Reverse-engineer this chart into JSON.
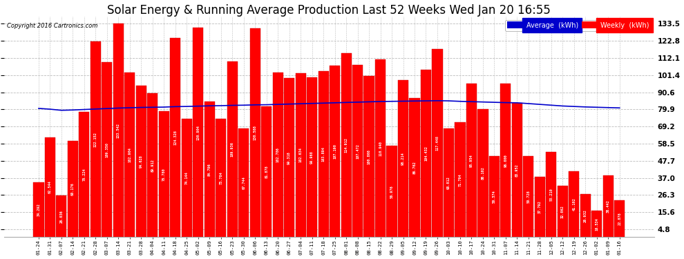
{
  "title": "Solar Energy & Running Average Production Last 52 Weeks Wed Jan 20 16:55",
  "copyright": "Copyright 2016 Cartronics.com",
  "yticks": [
    4.8,
    15.6,
    26.3,
    37.0,
    47.7,
    58.5,
    69.2,
    79.9,
    90.6,
    101.4,
    112.1,
    122.8,
    133.5
  ],
  "categories": [
    "01-24",
    "01-31",
    "02-07",
    "02-14",
    "02-21",
    "02-28",
    "03-07",
    "03-14",
    "03-21",
    "03-28",
    "04-04",
    "04-11",
    "04-18",
    "04-25",
    "05-02",
    "05-09",
    "05-16",
    "05-23",
    "05-30",
    "06-06",
    "06-13",
    "06-20",
    "06-27",
    "07-04",
    "07-11",
    "07-18",
    "07-25",
    "08-01",
    "08-08",
    "08-15",
    "08-22",
    "08-29",
    "09-05",
    "09-12",
    "09-19",
    "09-26",
    "10-03",
    "10-10",
    "10-17",
    "10-24",
    "10-31",
    "11-07",
    "11-14",
    "11-21",
    "11-28",
    "12-05",
    "12-12",
    "12-19",
    "12-26",
    "01-02",
    "01-09",
    "01-16"
  ],
  "weekly_values": [
    34.292,
    62.544,
    26.036,
    60.176,
    78.224,
    122.152,
    109.35,
    133.542,
    102.904,
    94.628,
    89.912,
    78.78,
    124.328,
    74.144,
    130.904,
    84.796,
    73.784,
    109.936,
    67.744,
    130.588,
    81.878,
    102.786,
    99.318,
    102.634,
    99.968,
    103.894,
    107.19,
    114.912,
    107.472,
    100.808,
    110.94,
    56.976,
    98.214,
    86.762,
    104.432,
    117.448,
    68.012,
    71.794,
    95.954,
    80.102,
    50.574,
    96.0,
    83.952,
    50.728,
    37.792,
    53.21,
    32.062,
    41.102,
    26.932,
    16.534,
    38.442,
    22.878
  ],
  "running_avg": [
    80.5,
    80.0,
    79.3,
    79.5,
    79.8,
    80.1,
    80.4,
    80.7,
    80.9,
    81.1,
    81.2,
    81.3,
    81.6,
    81.7,
    81.9,
    82.1,
    82.2,
    82.4,
    82.5,
    82.7,
    82.8,
    83.0,
    83.2,
    83.4,
    83.6,
    83.8,
    84.0,
    84.2,
    84.4,
    84.6,
    84.8,
    84.9,
    85.0,
    85.1,
    85.2,
    85.3,
    85.2,
    84.9,
    84.7,
    84.5,
    84.3,
    84.1,
    84.0,
    83.5,
    83.0,
    82.5,
    82.0,
    81.7,
    81.4,
    81.2,
    81.0,
    80.8
  ],
  "bar_color": "#ff0000",
  "line_color": "#0000cc",
  "bg_color": "#ffffff",
  "grid_color": "#bbbbbb",
  "title_fontsize": 12,
  "legend_avg_color": "#0000cc",
  "legend_weekly_color": "#ff0000"
}
